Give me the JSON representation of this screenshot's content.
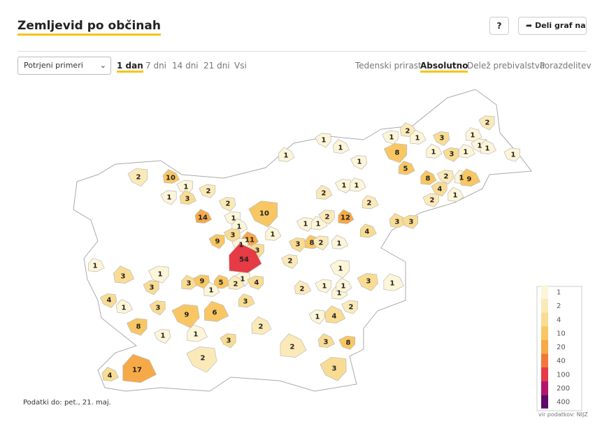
{
  "header": {
    "title": "Zemljevid po občinah",
    "help": "?",
    "share": "Deli graf na"
  },
  "controls": {
    "measure": "Potrjeni primeri",
    "periods": [
      "1 dan",
      "7 dni",
      "14 dni",
      "21 dni",
      "Vsi"
    ],
    "active_period": 0,
    "views": [
      "Tedenski prirast",
      "Absolutno",
      "Delež prebivalstva",
      "Porazdelitev"
    ],
    "active_view": 1
  },
  "chart_data": {
    "type": "choropleth",
    "values": [
      2,
      2,
      1,
      1,
      3,
      1,
      1,
      1,
      8,
      1,
      3,
      1,
      1,
      1,
      1,
      1,
      1,
      5,
      2,
      10,
      1,
      8,
      2,
      1,
      4,
      9,
      2,
      2,
      1,
      1,
      1,
      3,
      2,
      1,
      2,
      2,
      10,
      14,
      1,
      12,
      1,
      1,
      2,
      3,
      3,
      1,
      3,
      4,
      9,
      11,
      1,
      1,
      3,
      8,
      2,
      1,
      3,
      54,
      2,
      1,
      1,
      3,
      1,
      3,
      9,
      5,
      1,
      2,
      4,
      1,
      3,
      1,
      3,
      2,
      1,
      1,
      4,
      3,
      3,
      1,
      2,
      1,
      9,
      6,
      1,
      4,
      8,
      2,
      1,
      1,
      3,
      3,
      8,
      2,
      2,
      17,
      3,
      4
    ],
    "legend": {
      "stops": [
        1,
        2,
        4,
        10,
        20,
        40,
        100,
        200,
        400
      ],
      "colors": [
        "#fdf5d8",
        "#fbeab8",
        "#f9dc93",
        "#f8c763",
        "#f6a947",
        "#f0783c",
        "#e63a45",
        "#b3166d",
        "#5e0a68"
      ]
    },
    "note": "Podatki do: pet., 21. maj.",
    "source": "vir podatkov: NIJZ"
  }
}
